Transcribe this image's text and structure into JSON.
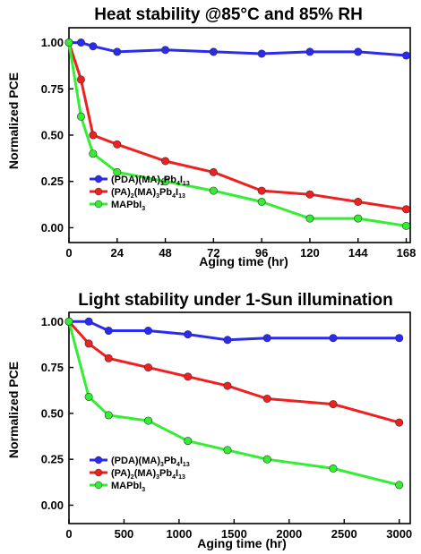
{
  "chart_data": [
    {
      "type": "line",
      "title": "Heat stability @85°C and 85% RH",
      "xlabel": "Aging time (hr)",
      "ylabel": "Normalized PCE",
      "xlim": [
        0,
        170
      ],
      "ylim": [
        -0.08,
        1.08
      ],
      "xticks": [
        0,
        24,
        48,
        72,
        96,
        120,
        144,
        168
      ],
      "xtick_labels": [
        "0",
        "24",
        "48",
        "72",
        "96",
        "120",
        "144",
        "168"
      ],
      "yticks": [
        0.0,
        0.25,
        0.5,
        0.75,
        1.0
      ],
      "ytick_labels": [
        "0.00",
        "0.25",
        "0.50",
        "0.75",
        "1.00"
      ],
      "grid": false,
      "legend_position": "bottom-left",
      "series": [
        {
          "name": "(PDA)(MA)3Pb4I13",
          "legend_parts": [
            [
              "(PDA)(MA)",
              ""
            ],
            [
              "3",
              "sub"
            ],
            [
              "Pb",
              ""
            ],
            [
              "4",
              "sub"
            ],
            [
              "I",
              ""
            ],
            [
              "13",
              "sub"
            ]
          ],
          "color": "#2a2af0",
          "x": [
            0,
            6,
            12,
            24,
            48,
            72,
            96,
            120,
            144,
            168
          ],
          "y": [
            1.0,
            1.0,
            0.98,
            0.95,
            0.96,
            0.95,
            0.94,
            0.95,
            0.95,
            0.93
          ]
        },
        {
          "name": "(PA)2(MA)3Pb4I13",
          "legend_parts": [
            [
              "(PA)",
              ""
            ],
            [
              "2",
              "sub"
            ],
            [
              "(MA)",
              ""
            ],
            [
              "3",
              "sub"
            ],
            [
              "Pb",
              ""
            ],
            [
              "4",
              "sub"
            ],
            [
              "I",
              ""
            ],
            [
              "13",
              "sub"
            ]
          ],
          "color": "#ee2020",
          "x": [
            0,
            6,
            12,
            24,
            48,
            72,
            96,
            120,
            144,
            168
          ],
          "y": [
            1.0,
            0.8,
            0.5,
            0.45,
            0.36,
            0.3,
            0.2,
            0.18,
            0.14,
            0.1
          ]
        },
        {
          "name": "MAPbI3",
          "legend_parts": [
            [
              "MAPbI",
              ""
            ],
            [
              "3",
              "sub"
            ]
          ],
          "color": "#33ee33",
          "x": [
            0,
            6,
            12,
            24,
            48,
            72,
            96,
            120,
            144,
            168
          ],
          "y": [
            1.0,
            0.6,
            0.4,
            0.3,
            0.25,
            0.2,
            0.14,
            0.05,
            0.05,
            0.01
          ]
        }
      ]
    },
    {
      "type": "line",
      "title": "Light stability under 1-Sun illumination",
      "xlabel": "Aging time (hr)",
      "ylabel": "Normalized PCE",
      "xlim": [
        0,
        3100
      ],
      "ylim": [
        -0.1,
        1.05
      ],
      "xticks": [
        0,
        500,
        1000,
        1500,
        2000,
        2500,
        3000
      ],
      "xtick_labels": [
        "0",
        "500",
        "1000",
        "1500",
        "2000",
        "2500",
        "3000"
      ],
      "yticks": [
        0.0,
        0.25,
        0.5,
        0.75,
        1.0
      ],
      "ytick_labels": [
        "0.00",
        "0.25",
        "0.50",
        "0.75",
        "1.00"
      ],
      "grid": false,
      "legend_position": "bottom-left",
      "series": [
        {
          "name": "(PDA)(MA)3Pb4I13",
          "legend_parts": [
            [
              "(PDA)(MA)",
              ""
            ],
            [
              "3",
              "sub"
            ],
            [
              "Pb",
              ""
            ],
            [
              "4",
              "sub"
            ],
            [
              "I",
              ""
            ],
            [
              "13",
              "sub"
            ]
          ],
          "color": "#2a2af0",
          "x": [
            0,
            180,
            360,
            720,
            1080,
            1440,
            1800,
            2400,
            3000
          ],
          "y": [
            1.0,
            1.0,
            0.95,
            0.95,
            0.93,
            0.9,
            0.91,
            0.91,
            0.91
          ]
        },
        {
          "name": "(PA)2(MA)3Pb4I13",
          "legend_parts": [
            [
              "(PA)",
              ""
            ],
            [
              "2",
              "sub"
            ],
            [
              "(MA)",
              ""
            ],
            [
              "3",
              "sub"
            ],
            [
              "Pb",
              ""
            ],
            [
              "4",
              "sub"
            ],
            [
              "I",
              ""
            ],
            [
              "13",
              "sub"
            ]
          ],
          "color": "#ee2020",
          "x": [
            0,
            180,
            360,
            720,
            1080,
            1440,
            1800,
            2400,
            3000
          ],
          "y": [
            1.0,
            0.88,
            0.8,
            0.75,
            0.7,
            0.65,
            0.58,
            0.55,
            0.45
          ]
        },
        {
          "name": "MAPbI3",
          "legend_parts": [
            [
              "MAPbI",
              ""
            ],
            [
              "3",
              "sub"
            ]
          ],
          "color": "#33ee33",
          "x": [
            0,
            180,
            360,
            720,
            1080,
            1440,
            1800,
            2400,
            3000
          ],
          "y": [
            1.0,
            0.59,
            0.49,
            0.46,
            0.35,
            0.3,
            0.25,
            0.2,
            0.11
          ]
        }
      ]
    }
  ]
}
